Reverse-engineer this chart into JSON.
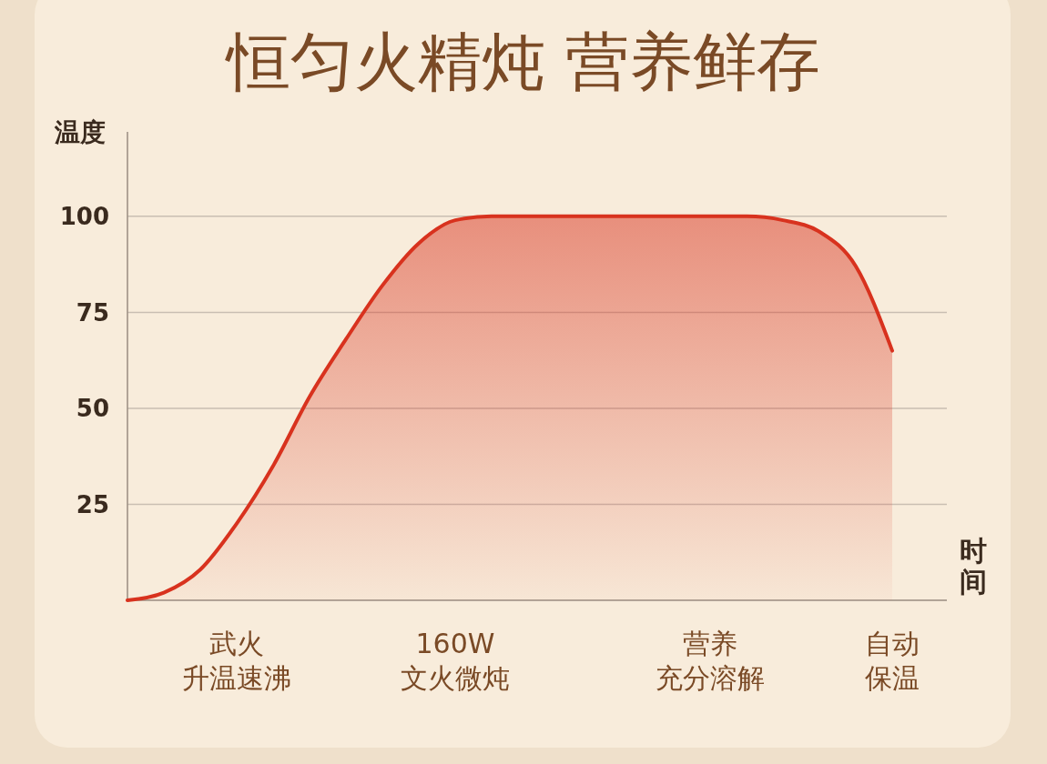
{
  "chart_data": {
    "type": "area",
    "title": "恒匀火精炖 营养鲜存",
    "xlabel": "时间",
    "ylabel": "温度",
    "categories": [
      null,
      null,
      null,
      "武火升温速沸",
      null,
      null,
      null,
      null,
      null,
      "160W\n文火微炖",
      null,
      null,
      null,
      null,
      null,
      null,
      "营养充分溶解",
      null,
      null,
      null,
      null,
      "自动保温"
    ],
    "series": [
      {
        "color": "#d8321e",
        "values": [
          0,
          2,
          8,
          20,
          35,
          53,
          68,
          82,
          93,
          99,
          100,
          100,
          100,
          100,
          100,
          100,
          100,
          100,
          99,
          96,
          87,
          65
        ]
      }
    ],
    "ylim": [
      0,
      122
    ],
    "yticks": [
      25,
      50,
      75,
      100
    ],
    "grid": "y"
  }
}
